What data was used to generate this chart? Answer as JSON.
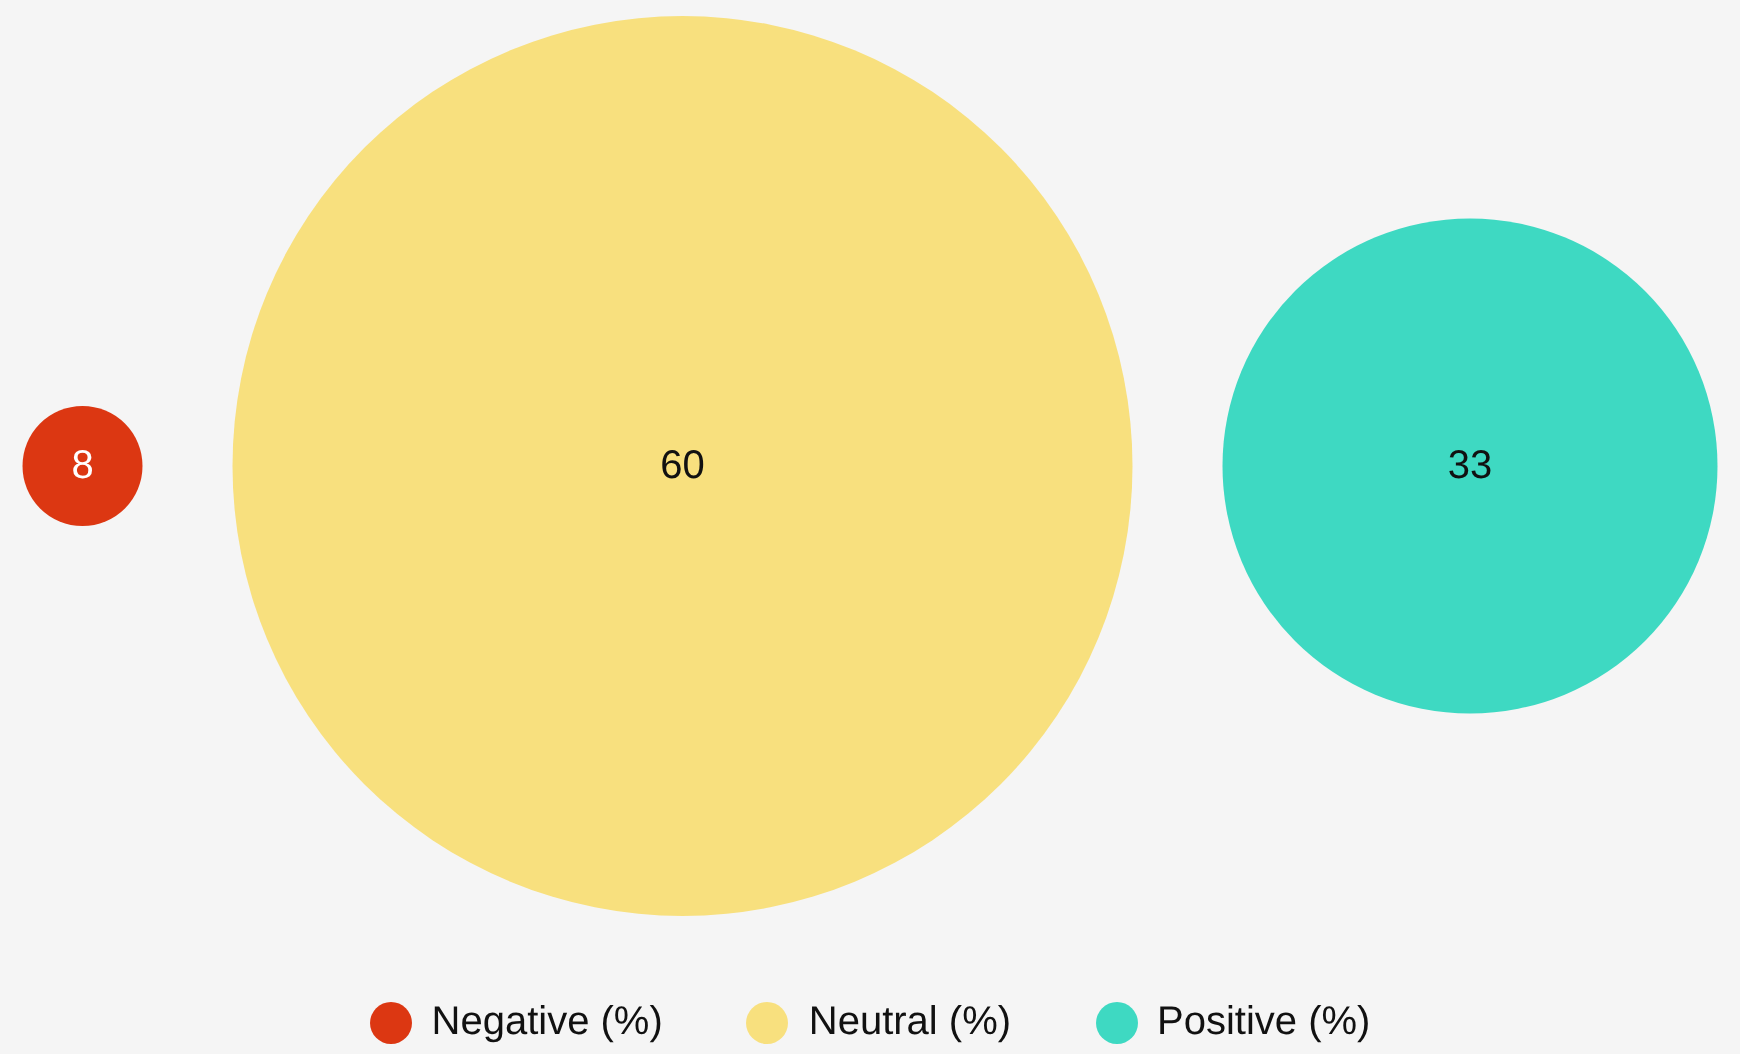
{
  "chart_data": {
    "type": "other",
    "categories": [
      "Negative (%)",
      "Neutral (%)",
      "Positive (%)"
    ],
    "values": [
      8,
      60,
      33
    ],
    "colors": [
      "#dc3712",
      "#f8e07e",
      "#3ed9c2"
    ],
    "data_labels": true
  }
}
